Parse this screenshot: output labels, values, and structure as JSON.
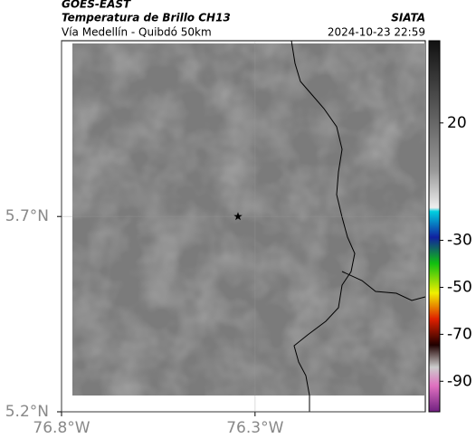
{
  "header": {
    "source": "GOES-EAST",
    "product": "Temperatura de Brillo CH13",
    "route": "Vía Medellín - Quibdó 50km",
    "agency": "SIATA",
    "timestamp": "2024-10-23 22:59"
  },
  "map": {
    "xlim": [
      -76.8,
      -75.86
    ],
    "ylim": [
      5.2,
      6.15
    ],
    "xticks": [
      {
        "value": -76.8,
        "label": "76.8°W"
      },
      {
        "value": -76.3,
        "label": "76.3°W"
      }
    ],
    "yticks": [
      {
        "value": 5.2,
        "label": "5.2°N"
      },
      {
        "value": 5.7,
        "label": "5.7°N"
      }
    ],
    "marker": {
      "lon": -76.344,
      "lat": 5.7
    }
  },
  "colorbar": {
    "clim": [
      -103,
      55
    ],
    "ticks": [
      20,
      -30,
      -50,
      -70,
      -90
    ]
  }
}
